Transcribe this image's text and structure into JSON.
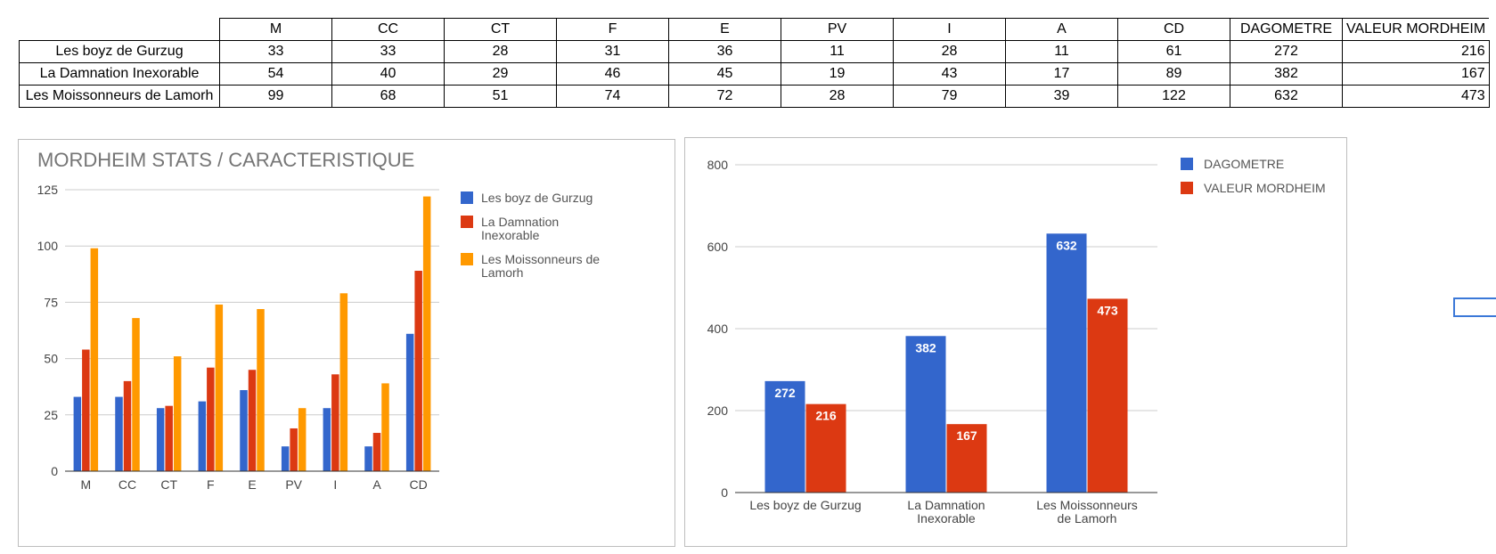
{
  "table": {
    "headers": [
      "M",
      "CC",
      "CT",
      "F",
      "E",
      "PV",
      "I",
      "A",
      "CD",
      "DAGOMETRE",
      "VALEUR MORDHEIM"
    ],
    "rows": [
      {
        "label": "Les boyz de Gurzug",
        "values": [
          "33",
          "33",
          "28",
          "31",
          "36",
          "11",
          "28",
          "11",
          "61",
          "272",
          "216"
        ]
      },
      {
        "label": "La Damnation Inexorable",
        "values": [
          "54",
          "40",
          "29",
          "46",
          "45",
          "19",
          "43",
          "17",
          "89",
          "382",
          "167"
        ]
      },
      {
        "label": "Les Moissonneurs de Lamorh",
        "values": [
          "99",
          "68",
          "51",
          "74",
          "72",
          "28",
          "79",
          "39",
          "122",
          "632",
          "473"
        ]
      }
    ]
  },
  "chart_data": [
    {
      "type": "bar",
      "title": "MORDHEIM STATS / CARACTERISTIQUE",
      "categories": [
        "M",
        "CC",
        "CT",
        "F",
        "E",
        "PV",
        "I",
        "A",
        "CD"
      ],
      "series": [
        {
          "name": "Les boyz de Gurzug",
          "legend_lines": [
            "Les boyz de Gurzug"
          ],
          "color": "#3366cc",
          "values": [
            33,
            33,
            28,
            31,
            36,
            11,
            28,
            11,
            61
          ]
        },
        {
          "name": "La Damnation Inexorable",
          "legend_lines": [
            "La Damnation",
            "Inexorable"
          ],
          "color": "#dc3912",
          "values": [
            54,
            40,
            29,
            46,
            45,
            19,
            43,
            17,
            89
          ]
        },
        {
          "name": "Les Moissonneurs de Lamorh",
          "legend_lines": [
            "Les Moissonneurs de",
            "Lamorh"
          ],
          "color": "#ff9900",
          "values": [
            99,
            68,
            51,
            74,
            72,
            28,
            79,
            39,
            122
          ]
        }
      ],
      "yticks": [
        0,
        25,
        50,
        75,
        100,
        125
      ],
      "ylim": [
        0,
        125
      ],
      "grid": true,
      "legend": "right"
    },
    {
      "type": "bar",
      "title": "",
      "categories": [
        "Les boyz de Gurzug",
        "La Damnation Inexorable",
        "Les Moissonneurs de Lamorh"
      ],
      "category_lines": [
        [
          "Les boyz de Gurzug"
        ],
        [
          "La Damnation",
          "Inexorable"
        ],
        [
          "Les Moissonneurs",
          "de Lamorh"
        ]
      ],
      "series": [
        {
          "name": "DAGOMETRE",
          "color": "#3366cc",
          "values": [
            272,
            382,
            632
          ]
        },
        {
          "name": "VALEUR MORDHEIM",
          "color": "#dc3912",
          "values": [
            216,
            167,
            473
          ]
        }
      ],
      "yticks": [
        0,
        200,
        400,
        600,
        800
      ],
      "ylim": [
        0,
        800
      ],
      "data_labels": true,
      "grid": true,
      "legend": "right"
    }
  ]
}
